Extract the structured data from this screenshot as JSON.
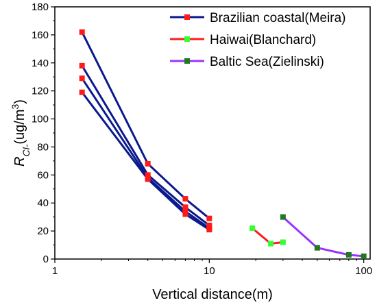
{
  "chart_data": {
    "type": "line",
    "xlabel": "Vertical distance(m)",
    "ylabel_main": "R",
    "ylabel_sub": "Cl-",
    "ylabel_rest": "(ug/m",
    "ylabel_sup": "3",
    "ylabel_close": ")",
    "x_scale": "log",
    "xlim": [
      1,
      110
    ],
    "ylim": [
      0,
      180
    ],
    "x_ticks": [
      1,
      10,
      100
    ],
    "x_tick_labels": [
      "1",
      "10",
      "100"
    ],
    "y_ticks": [
      0,
      20,
      40,
      60,
      80,
      100,
      120,
      140,
      160,
      180
    ],
    "y_tick_labels": [
      "0",
      "20",
      "40",
      "60",
      "80",
      "100",
      "120",
      "140",
      "160",
      "180"
    ],
    "grid": false,
    "legend_position": "top-right",
    "groups": [
      {
        "name": "Brazilian coastal(Meira)",
        "line_color": "#0a1a8c",
        "marker_color": "#ff1a1a",
        "series": [
          {
            "x": [
              1.5,
              4,
              7,
              10
            ],
            "y": [
              162,
              68,
              43,
              29
            ]
          },
          {
            "x": [
              1.5,
              4,
              7,
              10
            ],
            "y": [
              138,
              60,
              37,
              24
            ]
          },
          {
            "x": [
              1.5,
              4,
              7,
              10
            ],
            "y": [
              129,
              58,
              34,
              22
            ]
          },
          {
            "x": [
              1.5,
              4,
              7,
              10
            ],
            "y": [
              119,
              57,
              32,
              21
            ]
          }
        ]
      },
      {
        "name": "Haiwai(Blanchard)",
        "line_color": "#ff1a1a",
        "marker_color": "#33ff33",
        "series": [
          {
            "x": [
              19,
              25,
              30
            ],
            "y": [
              22,
              11,
              12
            ]
          }
        ]
      },
      {
        "name": "Baltic Sea(Zielinski)",
        "line_color": "#9933ff",
        "marker_color": "#1f7a1f",
        "series": [
          {
            "x": [
              30,
              50,
              80,
              100
            ],
            "y": [
              30,
              8,
              3,
              2
            ]
          }
        ]
      }
    ]
  }
}
